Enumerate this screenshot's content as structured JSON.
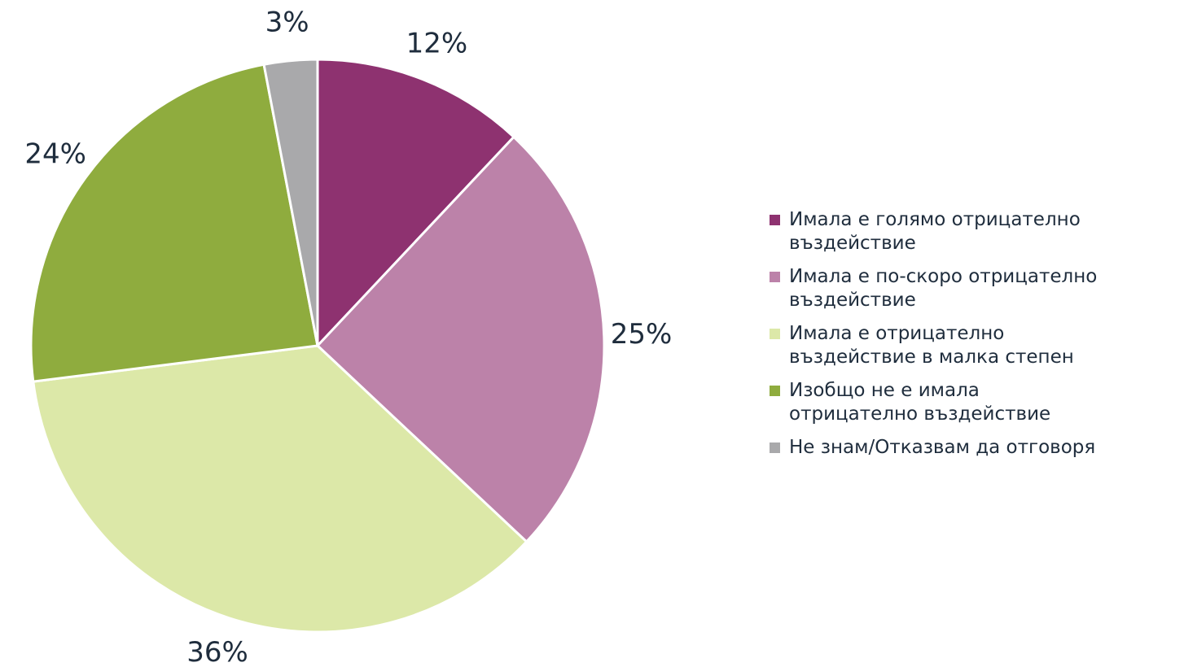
{
  "chart_data": {
    "type": "pie",
    "categories": [
      "Имала е голямо отрицателно въздействие",
      "Имала е по-скоро отрицателно въздействие",
      "Имала е отрицателно въздействие в малка степен",
      "Изобщо не е имала отрицателно въздействие",
      "Не знам/Отказвам да отговоря"
    ],
    "values": [
      12,
      25,
      36,
      24,
      3
    ],
    "value_labels": [
      "12%",
      "25%",
      "36%",
      "24%",
      "3%"
    ],
    "colors": [
      "#8e3270",
      "#bc82a9",
      "#dce8a8",
      "#8fac3e",
      "#a9a9ab"
    ],
    "legend": "right"
  }
}
